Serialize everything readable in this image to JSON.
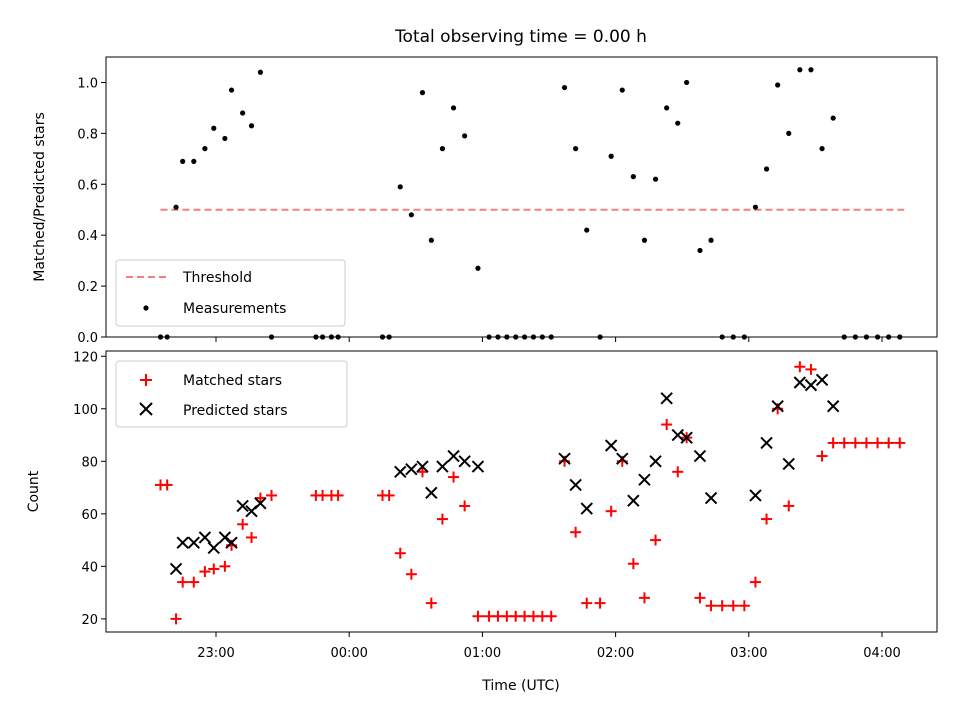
{
  "chart_data": [
    {
      "type": "scatter",
      "panel": "top",
      "title": "Total observing time = 0.00 h",
      "ylabel": "Matched/Predicted stars",
      "ylim": [
        0,
        1.1
      ],
      "yticks": [
        "0.0",
        "0.2",
        "0.4",
        "0.6",
        "0.8",
        "1.0"
      ],
      "legend_location": "lower-left",
      "series": [
        {
          "name": "Threshold",
          "style": "dashed-line",
          "color": "#f08080",
          "points": [
            [
              "22:35",
              0.5
            ],
            [
              "04:10",
              0.5
            ]
          ]
        },
        {
          "name": "Measurements",
          "style": "dot",
          "color": "#000000",
          "points": [
            [
              "22:35",
              0.0
            ],
            [
              "22:38",
              0.0
            ],
            [
              "22:42",
              0.51
            ],
            [
              "22:45",
              0.69
            ],
            [
              "22:50",
              0.69
            ],
            [
              "22:55",
              0.74
            ],
            [
              "22:59",
              0.82
            ],
            [
              "23:04",
              0.78
            ],
            [
              "23:07",
              0.97
            ],
            [
              "23:12",
              0.88
            ],
            [
              "23:16",
              0.83
            ],
            [
              "23:20",
              1.04
            ],
            [
              "23:25",
              0.0
            ],
            [
              "23:45",
              0.0
            ],
            [
              "23:48",
              0.0
            ],
            [
              "23:52",
              0.0
            ],
            [
              "23:55",
              0.0
            ],
            [
              "00:15",
              0.0
            ],
            [
              "00:18",
              0.0
            ],
            [
              "00:23",
              0.59
            ],
            [
              "00:28",
              0.48
            ],
            [
              "00:33",
              0.96
            ],
            [
              "00:37",
              0.38
            ],
            [
              "00:42",
              0.74
            ],
            [
              "00:47",
              0.9
            ],
            [
              "00:52",
              0.79
            ],
            [
              "00:58",
              0.27
            ],
            [
              "01:03",
              0.0
            ],
            [
              "01:07",
              0.0
            ],
            [
              "01:11",
              0.0
            ],
            [
              "01:15",
              0.0
            ],
            [
              "01:19",
              0.0
            ],
            [
              "01:23",
              0.0
            ],
            [
              "01:27",
              0.0
            ],
            [
              "01:31",
              0.0
            ],
            [
              "01:37",
              0.98
            ],
            [
              "01:42",
              0.74
            ],
            [
              "01:47",
              0.42
            ],
            [
              "01:53",
              0.0
            ],
            [
              "01:58",
              0.71
            ],
            [
              "02:03",
              0.97
            ],
            [
              "02:08",
              0.63
            ],
            [
              "02:13",
              0.38
            ],
            [
              "02:18",
              0.62
            ],
            [
              "02:23",
              0.9
            ],
            [
              "02:28",
              0.84
            ],
            [
              "02:32",
              1.0
            ],
            [
              "02:38",
              0.34
            ],
            [
              "02:43",
              0.38
            ],
            [
              "02:48",
              0.0
            ],
            [
              "02:53",
              0.0
            ],
            [
              "02:58",
              0.0
            ],
            [
              "03:03",
              0.51
            ],
            [
              "03:08",
              0.66
            ],
            [
              "03:13",
              0.99
            ],
            [
              "03:18",
              0.8
            ],
            [
              "03:23",
              1.05
            ],
            [
              "03:28",
              1.05
            ],
            [
              "03:33",
              0.74
            ],
            [
              "03:38",
              0.86
            ],
            [
              "03:43",
              0.0
            ],
            [
              "03:48",
              0.0
            ],
            [
              "03:53",
              0.0
            ],
            [
              "03:58",
              0.0
            ],
            [
              "04:03",
              0.0
            ],
            [
              "04:08",
              0.0
            ]
          ]
        }
      ]
    },
    {
      "type": "scatter",
      "panel": "bottom",
      "xlabel": "Time (UTC)",
      "ylabel": "Count",
      "ylim": [
        15,
        122
      ],
      "yticks": [
        "20",
        "40",
        "60",
        "80",
        "100",
        "120"
      ],
      "xticks": [
        "23:00",
        "00:00",
        "01:00",
        "02:00",
        "03:00",
        "04:00"
      ],
      "legend_location": "upper-left",
      "series": [
        {
          "name": "Matched stars",
          "marker": "plus",
          "color": "#ff0000",
          "points": [
            [
              "22:35",
              71
            ],
            [
              "22:38",
              71
            ],
            [
              "22:42",
              20
            ],
            [
              "22:45",
              34
            ],
            [
              "22:50",
              34
            ],
            [
              "22:55",
              38
            ],
            [
              "22:59",
              39
            ],
            [
              "23:04",
              40
            ],
            [
              "23:07",
              48
            ],
            [
              "23:12",
              56
            ],
            [
              "23:16",
              51
            ],
            [
              "23:20",
              66
            ],
            [
              "23:25",
              67
            ],
            [
              "23:45",
              67
            ],
            [
              "23:48",
              67
            ],
            [
              "23:52",
              67
            ],
            [
              "23:55",
              67
            ],
            [
              "00:15",
              67
            ],
            [
              "00:18",
              67
            ],
            [
              "00:23",
              45
            ],
            [
              "00:28",
              37
            ],
            [
              "00:33",
              76
            ],
            [
              "00:37",
              26
            ],
            [
              "00:42",
              58
            ],
            [
              "00:47",
              74
            ],
            [
              "00:52",
              63
            ],
            [
              "00:58",
              21
            ],
            [
              "01:03",
              21
            ],
            [
              "01:07",
              21
            ],
            [
              "01:11",
              21
            ],
            [
              "01:15",
              21
            ],
            [
              "01:19",
              21
            ],
            [
              "01:23",
              21
            ],
            [
              "01:27",
              21
            ],
            [
              "01:31",
              21
            ],
            [
              "01:37",
              80
            ],
            [
              "01:42",
              53
            ],
            [
              "01:47",
              26
            ],
            [
              "01:53",
              26
            ],
            [
              "01:58",
              61
            ],
            [
              "02:03",
              80
            ],
            [
              "02:08",
              41
            ],
            [
              "02:13",
              28
            ],
            [
              "02:18",
              50
            ],
            [
              "02:23",
              94
            ],
            [
              "02:28",
              76
            ],
            [
              "02:32",
              89
            ],
            [
              "02:38",
              28
            ],
            [
              "02:43",
              25
            ],
            [
              "02:48",
              25
            ],
            [
              "02:53",
              25
            ],
            [
              "02:58",
              25
            ],
            [
              "03:03",
              34
            ],
            [
              "03:08",
              58
            ],
            [
              "03:13",
              100
            ],
            [
              "03:18",
              63
            ],
            [
              "03:23",
              116
            ],
            [
              "03:28",
              115
            ],
            [
              "03:33",
              82
            ],
            [
              "03:38",
              87
            ],
            [
              "03:43",
              87
            ],
            [
              "03:48",
              87
            ],
            [
              "03:53",
              87
            ],
            [
              "03:58",
              87
            ],
            [
              "04:03",
              87
            ],
            [
              "04:08",
              87
            ]
          ]
        },
        {
          "name": "Predicted stars",
          "marker": "x",
          "color": "#000000",
          "points": [
            [
              "22:42",
              39
            ],
            [
              "22:45",
              49
            ],
            [
              "22:50",
              49
            ],
            [
              "22:55",
              51
            ],
            [
              "22:59",
              47
            ],
            [
              "23:04",
              51
            ],
            [
              "23:07",
              49
            ],
            [
              "23:12",
              63
            ],
            [
              "23:16",
              61
            ],
            [
              "23:20",
              64
            ],
            [
              "00:23",
              76
            ],
            [
              "00:28",
              77
            ],
            [
              "00:33",
              78
            ],
            [
              "00:37",
              68
            ],
            [
              "00:42",
              78
            ],
            [
              "00:47",
              82
            ],
            [
              "00:52",
              80
            ],
            [
              "00:58",
              78
            ],
            [
              "01:37",
              81
            ],
            [
              "01:42",
              71
            ],
            [
              "01:47",
              62
            ],
            [
              "01:58",
              86
            ],
            [
              "02:03",
              81
            ],
            [
              "02:08",
              65
            ],
            [
              "02:13",
              73
            ],
            [
              "02:18",
              80
            ],
            [
              "02:23",
              104
            ],
            [
              "02:28",
              90
            ],
            [
              "02:32",
              89
            ],
            [
              "02:38",
              82
            ],
            [
              "02:43",
              66
            ],
            [
              "03:03",
              67
            ],
            [
              "03:08",
              87
            ],
            [
              "03:13",
              101
            ],
            [
              "03:18",
              79
            ],
            [
              "03:23",
              110
            ],
            [
              "03:28",
              109
            ],
            [
              "03:33",
              111
            ],
            [
              "03:38",
              101
            ]
          ]
        }
      ]
    }
  ]
}
